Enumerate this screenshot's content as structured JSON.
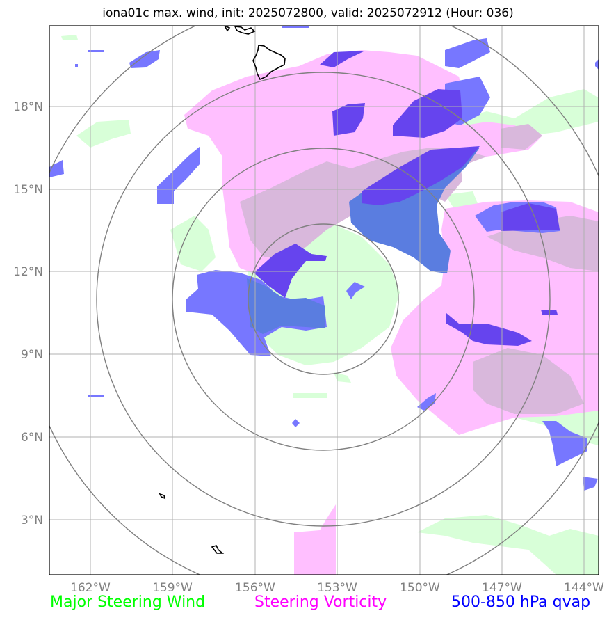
{
  "title": "iona01c max. wind, init: 2025072800, valid: 2025072912 (Hour: 036)",
  "lon_ticks": [
    "162°W",
    "159°W",
    "156°W",
    "153°W",
    "150°W",
    "147°W",
    "144°W"
  ],
  "lat_ticks": [
    "18°N",
    "15°N",
    "12°N",
    "9°N",
    "6°N",
    "3°N"
  ],
  "legend": {
    "wind": {
      "label": "Major Steering Wind",
      "color": "#00ff00"
    },
    "vorticity": {
      "label": "Steering Vorticity",
      "color": "#ff00ff"
    },
    "qvap": {
      "label": "500-850 hPa qvap",
      "color": "#0000ff"
    }
  },
  "map": {
    "lon_range": [
      -163.5,
      -143.5
    ],
    "lat_range": [
      1.0,
      20.9
    ],
    "center": {
      "lon": -153.5,
      "lat": 11.0
    },
    "range_rings": 4,
    "colors": {
      "wind_fill": "#d8ffd8",
      "vorticity_fill": "#ffbfff",
      "qvap_fill": "#5555ff",
      "overlap_fill": "#d9b8dc",
      "ring": "#808080",
      "grid": "#b0b0b0",
      "coast": "#000000"
    }
  }
}
